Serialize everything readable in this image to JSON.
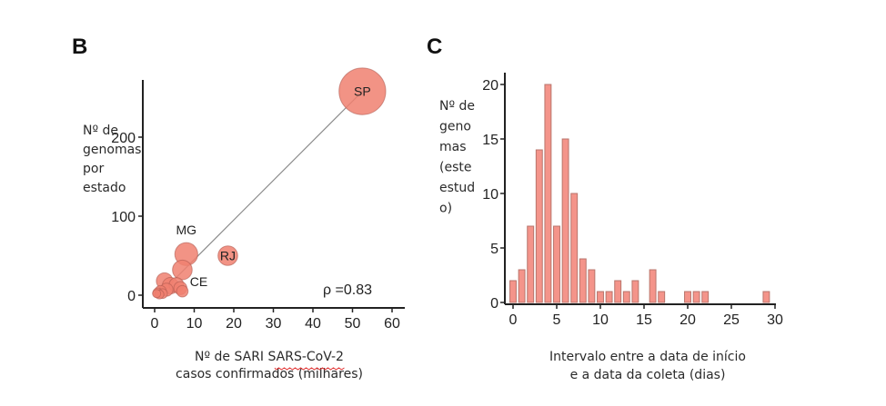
{
  "chart_data": [
    {
      "panel": "B",
      "type": "scatter",
      "title": "",
      "xlabel_lines": [
        "Nº de SARI SARS-CoV-2",
        "casos confirmados (milhares)"
      ],
      "ylabel_lines": [
        "Nº de",
        "genomas",
        "por",
        "estado"
      ],
      "xlim": [
        -1,
        62
      ],
      "ylim": [
        -5,
        268
      ],
      "xticks": [
        0,
        10,
        20,
        30,
        40,
        50,
        60
      ],
      "yticks": [
        0,
        100,
        200
      ],
      "annotation": "ρ =0.83",
      "color": "#f08070",
      "trend_line": {
        "x": [
          3,
          52.5
        ],
        "y": [
          10,
          258
        ]
      },
      "points": [
        {
          "label": "SP",
          "x": 52.5,
          "y": 258,
          "size": 3
        },
        {
          "label": "RJ",
          "x": 18.5,
          "y": 50,
          "size": 1.2
        },
        {
          "label": "MG",
          "x": 8,
          "y": 52,
          "size": 1.4
        },
        {
          "label": "CE",
          "x": 7,
          "y": 32,
          "size": 1.2
        },
        {
          "label": "",
          "x": 2.5,
          "y": 18,
          "size": 1.0
        },
        {
          "label": "",
          "x": 4,
          "y": 12,
          "size": 1.0
        },
        {
          "label": "",
          "x": 5.5,
          "y": 13,
          "size": 0.9
        },
        {
          "label": "",
          "x": 6.5,
          "y": 9,
          "size": 0.8
        },
        {
          "label": "",
          "x": 7,
          "y": 5,
          "size": 0.7
        },
        {
          "label": "",
          "x": 3,
          "y": 7,
          "size": 0.8
        },
        {
          "label": "",
          "x": 1.5,
          "y": 5,
          "size": 0.7
        },
        {
          "label": "",
          "x": 0.8,
          "y": 3,
          "size": 0.6
        },
        {
          "label": "",
          "x": 1.2,
          "y": 1,
          "size": 0.55
        },
        {
          "label": "",
          "x": 2,
          "y": 2,
          "size": 0.6
        },
        {
          "label": "",
          "x": 0.5,
          "y": 2,
          "size": 0.5
        }
      ]
    },
    {
      "panel": "C",
      "type": "bar",
      "title": "",
      "xlabel_lines": [
        "Intervalo entre a data de início",
        "e a data da coleta (dias)"
      ],
      "ylabel_lines": [
        "Nº de",
        "geno",
        "mas",
        "(este",
        "estud",
        "o)"
      ],
      "xlim": [
        -0.8,
        30
      ],
      "ylim": [
        0,
        21
      ],
      "xticks": [
        0,
        5,
        10,
        15,
        20,
        25,
        30
      ],
      "yticks": [
        0,
        5,
        10,
        15,
        20
      ],
      "color": "#f4948a",
      "categories": [
        0,
        1,
        2,
        3,
        4,
        5,
        6,
        7,
        8,
        9,
        10,
        11,
        12,
        13,
        14,
        16,
        17,
        20,
        21,
        22,
        29
      ],
      "values": [
        2,
        3,
        7,
        14,
        20,
        7,
        15,
        10,
        4,
        3,
        1,
        1,
        2,
        1,
        2,
        3,
        1,
        1,
        1,
        1,
        1
      ]
    }
  ]
}
